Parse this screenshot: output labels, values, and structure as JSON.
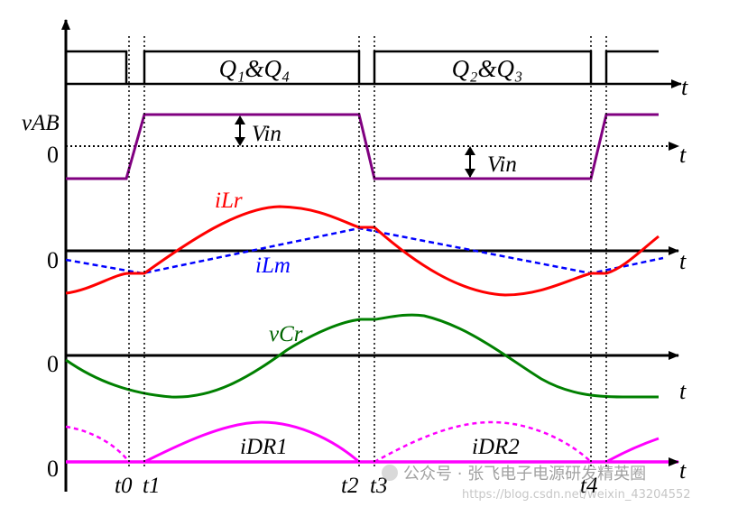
{
  "diagram": {
    "gate_labels": [
      "Q₁&Q₄",
      "Q₂&Q₃"
    ],
    "time_axis_label": "t",
    "zero_label": "0",
    "vab_label": "vAB",
    "vin_label": "Vin",
    "ilr_label": "iLr",
    "ilm_label": "iLm",
    "vcr_label": "vCr",
    "idr1_label": "iDR1",
    "idr2_label": "iDR2",
    "time_marks": [
      "t0",
      "t1",
      "t2",
      "t3",
      "t4"
    ],
    "colors": {
      "vab": "#800080",
      "ilr": "#ff0000",
      "ilm": "#0000ff",
      "vcr": "#008000",
      "idr": "#ff00ff",
      "axis": "#000000"
    }
  },
  "watermark": {
    "text_cn": "公众号 · 张飞电子电源研发精英圈",
    "url": "https://blog.csdn.net/weixin_43204552"
  }
}
